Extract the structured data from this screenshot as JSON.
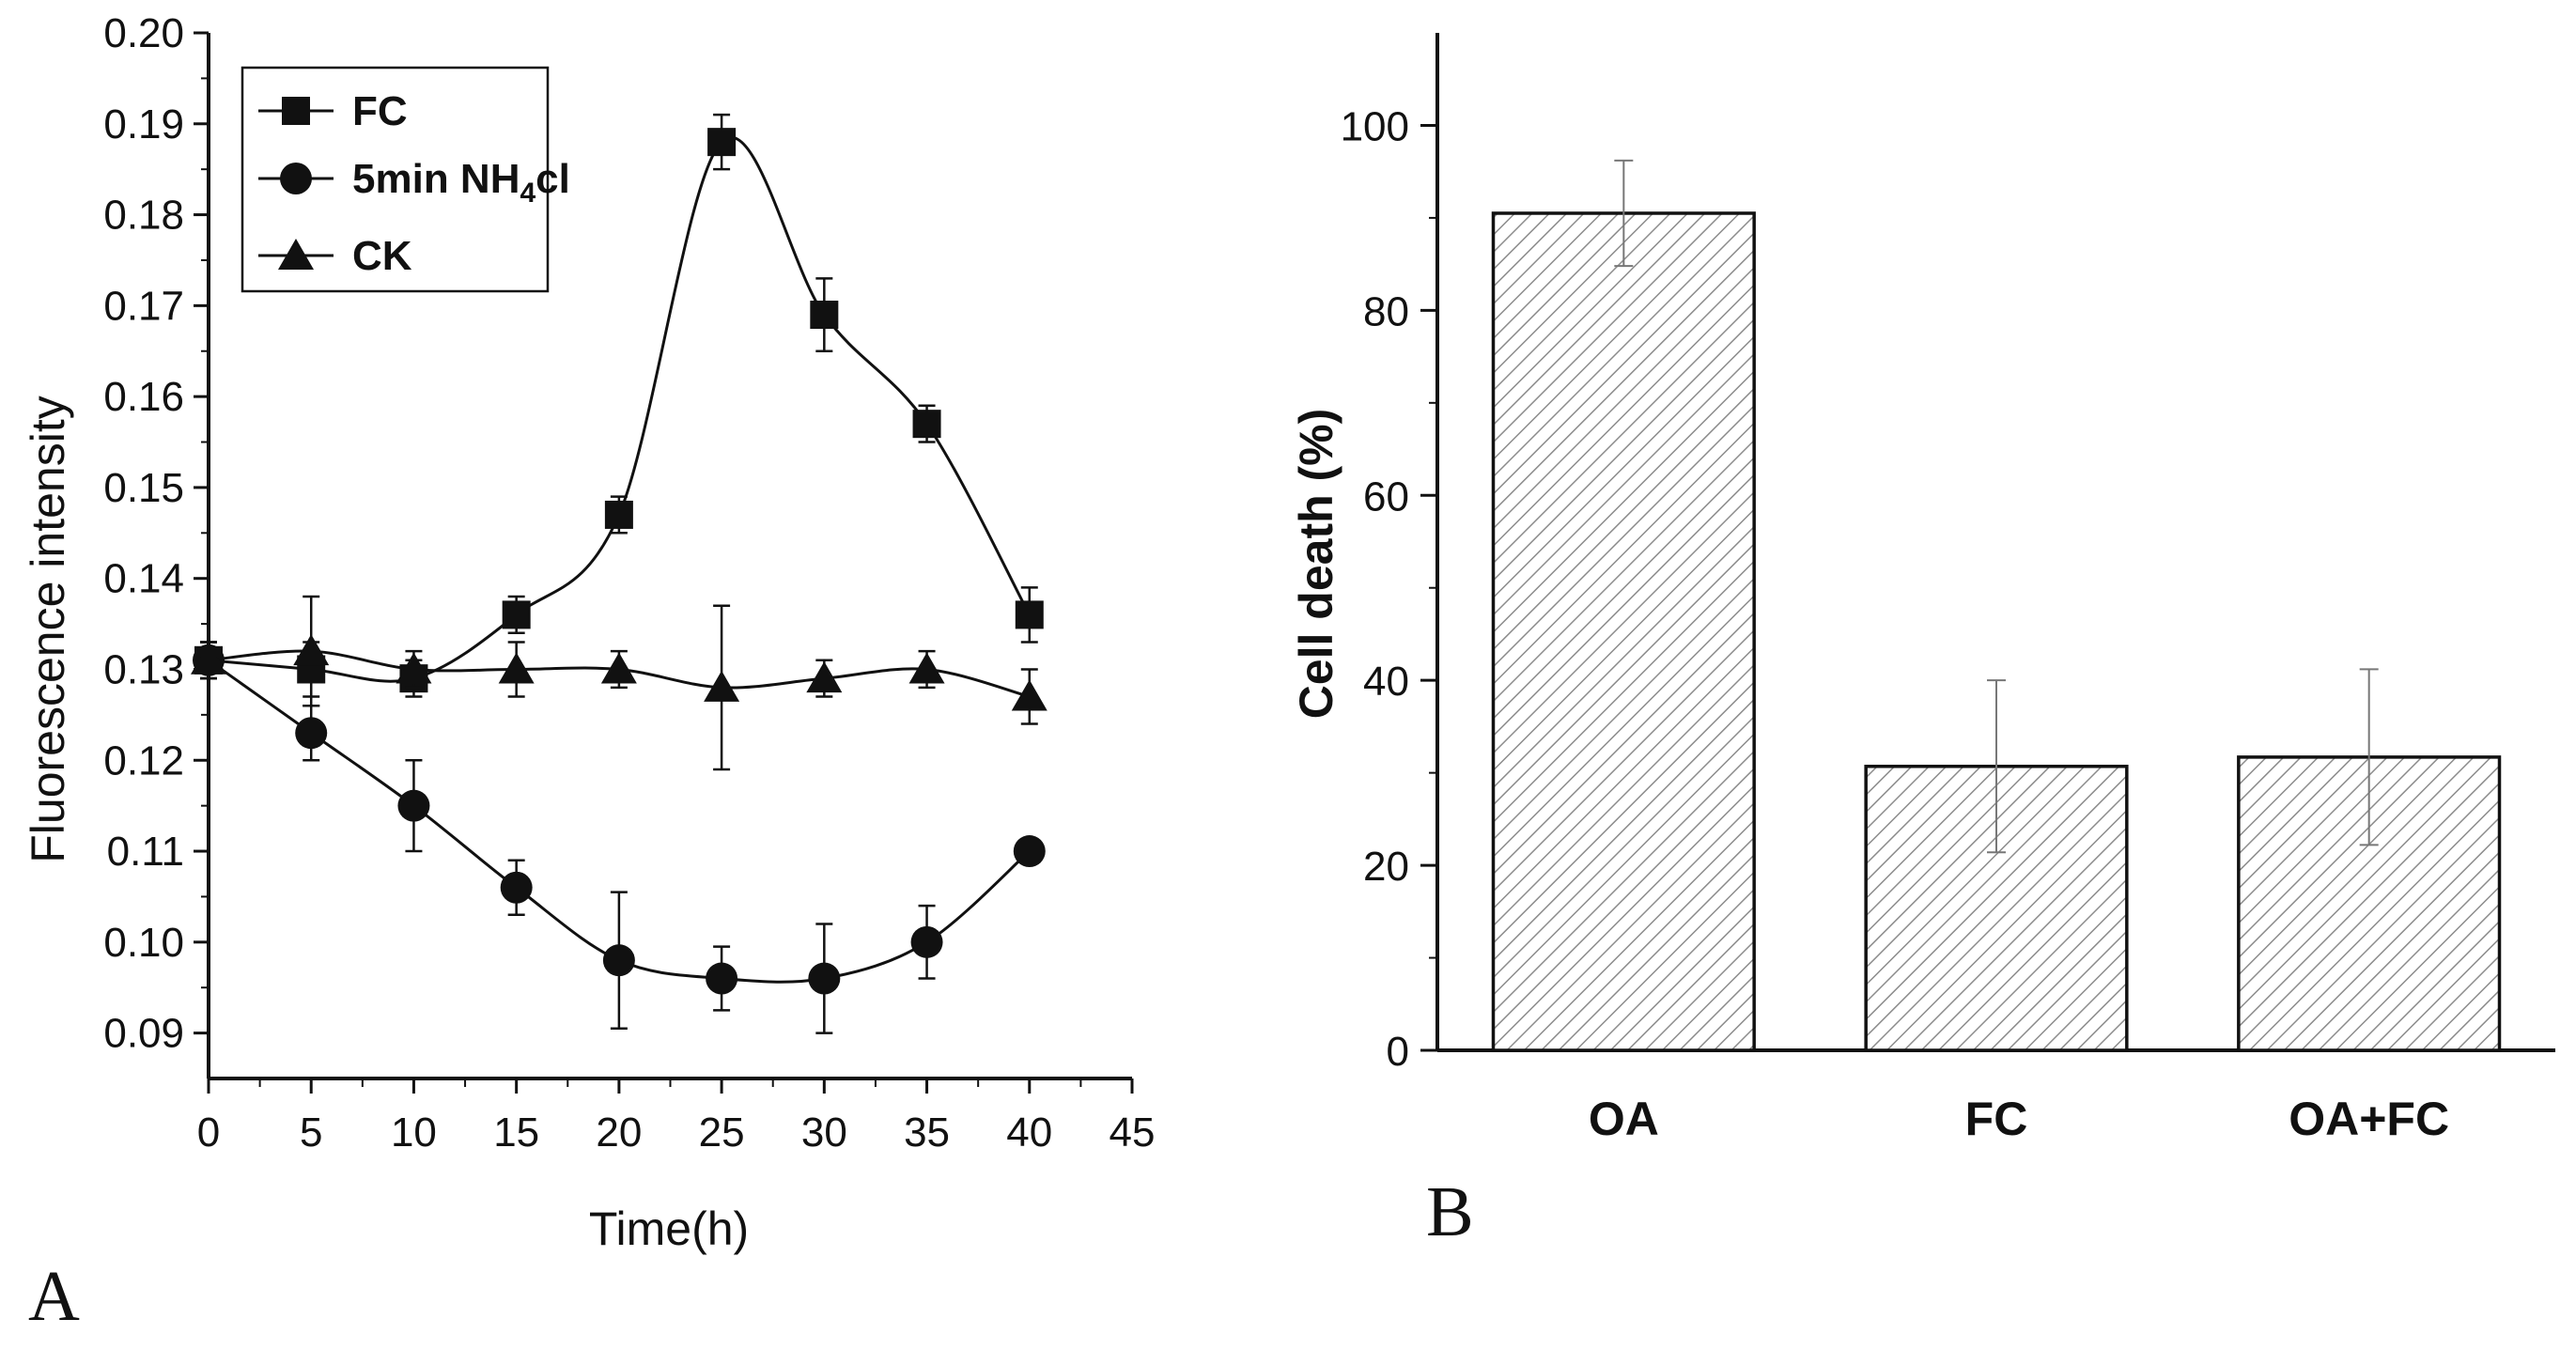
{
  "chart_data": [
    {
      "type": "line",
      "panel_label": "A",
      "xlabel": "Time(h)",
      "ylabel": "Fluorescence intensity",
      "xlim": [
        0,
        45
      ],
      "ylim": [
        0.085,
        0.2
      ],
      "x_ticks": [
        0,
        5,
        10,
        15,
        20,
        25,
        30,
        35,
        40,
        45
      ],
      "x_tick_labels": [
        "0",
        "5",
        "10",
        "15",
        "20",
        "25",
        "30",
        "35",
        "40",
        "45"
      ],
      "y_ticks": [
        0.09,
        0.1,
        0.11,
        0.12,
        0.13,
        0.14,
        0.15,
        0.16,
        0.17,
        0.18,
        0.19,
        0.2
      ],
      "y_tick_labels": [
        "0.09",
        "0.10",
        "0.11",
        "0.12",
        "0.13",
        "0.14",
        "0.15",
        "0.16",
        "0.17",
        "0.18",
        "0.19",
        "0.20"
      ],
      "legend_position": "top-left",
      "x": [
        0,
        5,
        10,
        15,
        20,
        25,
        30,
        35,
        40
      ],
      "series": [
        {
          "name": "FC",
          "legend_label": "FC",
          "marker": "square",
          "values": [
            0.131,
            0.13,
            0.129,
            0.136,
            0.147,
            0.188,
            0.169,
            0.157,
            0.136
          ],
          "errors": [
            0.002,
            0.003,
            0.002,
            0.002,
            0.002,
            0.003,
            0.004,
            0.002,
            0.003
          ]
        },
        {
          "name": "5min NH4cl",
          "legend_label": "5min NH",
          "legend_sub": "4",
          "legend_suffix": "cl",
          "marker": "circle",
          "values": [
            0.131,
            0.123,
            0.115,
            0.106,
            0.098,
            0.096,
            0.096,
            0.1,
            0.11
          ],
          "errors": [
            0.002,
            0.003,
            0.005,
            0.003,
            0.0075,
            0.0035,
            0.006,
            0.004,
            0.001
          ]
        },
        {
          "name": "CK",
          "legend_label": "CK",
          "marker": "triangle",
          "values": [
            0.131,
            0.132,
            0.13,
            0.13,
            0.13,
            0.128,
            0.129,
            0.13,
            0.127
          ],
          "errors": [
            0.002,
            0.006,
            0.002,
            0.003,
            0.002,
            0.009,
            0.002,
            0.002,
            0.003
          ]
        }
      ]
    },
    {
      "type": "bar",
      "panel_label": "B",
      "xlabel": "",
      "ylabel": "Cell death (%)",
      "ylim": [
        0,
        110
      ],
      "y_ticks": [
        0,
        20,
        40,
        60,
        80,
        100
      ],
      "y_tick_labels": [
        "0",
        "20",
        "40",
        "60",
        "80",
        "100"
      ],
      "categories": [
        "OA",
        "FC",
        "OA+FC"
      ],
      "values": [
        90.5,
        30.7,
        31.7
      ],
      "errors": [
        5.7,
        9.3,
        9.5
      ],
      "fill": "diagonal hatch"
    }
  ],
  "colors": {
    "ink": "#111111",
    "hatch": "#8c8c8c",
    "bar_background": "#ffffff",
    "error_bar_b": "#777777"
  }
}
